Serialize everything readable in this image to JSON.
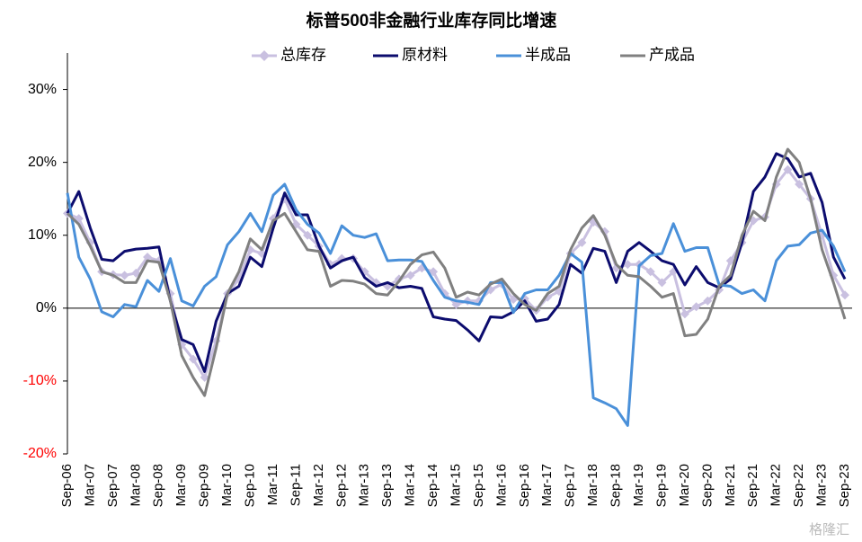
{
  "chart_data": {
    "type": "line",
    "title": "标普500非金融行业库存同比增速",
    "categories": [
      "Sep-06",
      null,
      "Mar-07",
      null,
      "Sep-07",
      null,
      "Mar-08",
      null,
      "Sep-08",
      null,
      "Mar-09",
      null,
      "Sep-09",
      null,
      "Mar-10",
      null,
      "Sep-10",
      null,
      "Mar-11",
      null,
      "Sep-11",
      null,
      "Mar-12",
      null,
      "Sep-12",
      null,
      "Mar-13",
      null,
      "Sep-13",
      null,
      "Mar-14",
      null,
      "Sep-14",
      null,
      "Mar-15",
      null,
      "Sep-15",
      null,
      "Mar-16",
      null,
      "Sep-16",
      null,
      "Mar-17",
      null,
      "Sep-17",
      null,
      "Mar-18",
      null,
      "Sep-18",
      null,
      "Mar-19",
      null,
      "Sep-19",
      null,
      "Mar-20",
      null,
      "Sep-20",
      null,
      "Mar-21",
      null,
      "Sep-21",
      null,
      "Mar-22",
      null,
      "Sep-22",
      null,
      "Mar-23",
      null,
      "Sep-23"
    ],
    "series": [
      {
        "name": "总库存",
        "color": "#c9c0e0",
        "marker": "diamond",
        "values": [
          13,
          12.3,
          9,
          5,
          4.6,
          4.5,
          4.8,
          7,
          6.5,
          2,
          -5,
          -7,
          -9.5,
          -4.5,
          2,
          4,
          8,
          7.5,
          12.3,
          15,
          11.5,
          10,
          8.5,
          6,
          6.8,
          6.8,
          5,
          3.5,
          3,
          4,
          4.5,
          5.5,
          5,
          2,
          0.5,
          1,
          1,
          2.5,
          3.3,
          1.2,
          1.3,
          -0.3,
          1.5,
          2.3,
          7.5,
          9,
          11.8,
          10.5,
          5.5,
          6,
          6,
          5,
          3.5,
          5,
          -0.8,
          0.2,
          1,
          2.5,
          6.5,
          9,
          12,
          12.5,
          17,
          19,
          17,
          15,
          10,
          4.5,
          1.8
        ]
      },
      {
        "name": "原材料",
        "color": "#0c0c6e",
        "values": [
          13,
          16,
          11,
          6.7,
          6.5,
          7.8,
          8.1,
          8.2,
          8.4,
          1,
          -4.3,
          -5,
          -8.7,
          -1.8,
          2,
          3,
          7,
          5.7,
          11,
          15.8,
          12.8,
          12.8,
          8.5,
          5.5,
          6.5,
          7,
          4.2,
          3,
          3.5,
          2.8,
          3,
          2.7,
          -1.2,
          -1.5,
          -1.7,
          -3,
          -4.5,
          -1.2,
          -1.3,
          -0.5,
          1,
          -1.8,
          -1.5,
          0.5,
          6,
          4.8,
          8.2,
          7.8,
          3.5,
          7.8,
          9,
          7.8,
          6.5,
          6,
          3.2,
          5.7,
          3.5,
          2.8,
          4,
          9,
          16,
          18,
          21.2,
          20.5,
          18,
          18.5,
          14.5,
          7,
          4
        ]
      },
      {
        "name": "半成品",
        "color": "#4a90d9",
        "values": [
          15.8,
          7,
          4,
          -0.5,
          -1.2,
          0.5,
          0.2,
          3.8,
          2.3,
          6.8,
          1,
          0.3,
          3,
          4.3,
          8.7,
          10.5,
          13,
          10.5,
          15.5,
          17,
          13.5,
          11.5,
          10.3,
          7.5,
          11.3,
          10,
          9.7,
          10.2,
          6.5,
          6.6,
          6.6,
          6.4,
          3.8,
          1.5,
          1,
          0.8,
          0.5,
          3.5,
          3.5,
          -0.6,
          2,
          2.5,
          2.5,
          4.5,
          7.5,
          6.3,
          -12.3,
          -13,
          -13.8,
          -16.1,
          5.8,
          7.2,
          7.5,
          11.6,
          7.8,
          8.3,
          8.3,
          3.2,
          3,
          2,
          2.5,
          1,
          6.5,
          8.5,
          8.7,
          10.3,
          10.7,
          8.5,
          5
        ]
      },
      {
        "name": "产成品",
        "color": "#808080",
        "values": [
          13,
          11.5,
          8.5,
          5,
          4.5,
          3.5,
          3.5,
          6.5,
          6.3,
          1,
          -6.5,
          -9.5,
          -12,
          -5.5,
          2,
          5,
          9.5,
          8,
          12,
          13,
          10.5,
          8,
          7.8,
          3,
          3.8,
          3.7,
          3.3,
          2,
          1.8,
          3.7,
          6,
          7.3,
          7.7,
          5.5,
          1.5,
          2.2,
          1.8,
          3.3,
          4,
          2,
          0.5,
          -0.3,
          2,
          3,
          8,
          11,
          12.7,
          10,
          6,
          4.5,
          4.3,
          3,
          1.5,
          2,
          -3.8,
          -3.6,
          -1.5,
          3,
          4.5,
          10,
          13.3,
          12,
          18,
          21.8,
          20,
          15,
          8,
          3.5,
          -1.5
        ]
      }
    ],
    "ylim": [
      -20,
      35
    ],
    "yticks": [
      {
        "value": -20,
        "label": "-20%"
      },
      {
        "value": -10,
        "label": "-10%"
      },
      {
        "value": 0,
        "label": "0%"
      },
      {
        "value": 10,
        "label": "10%"
      },
      {
        "value": 20,
        "label": "20%"
      },
      {
        "value": 30,
        "label": "30%"
      }
    ],
    "ytick_negative_color": "#ff0000",
    "watermark": "格隆汇"
  }
}
